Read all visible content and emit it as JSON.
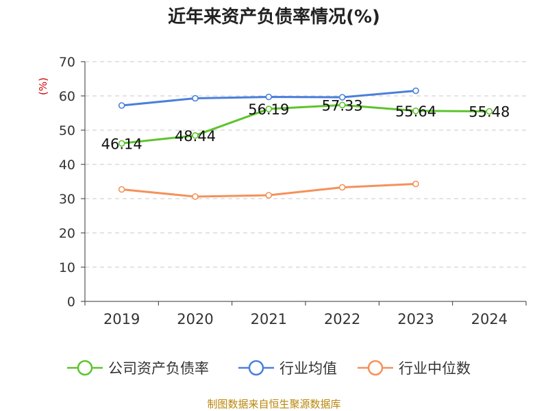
{
  "chart_data": {
    "type": "line",
    "title": "近年来资产负债率情况(%)",
    "ylabel": "(%)",
    "xlabel": "",
    "ylim": [
      0,
      70
    ],
    "yticks": [
      "0",
      "10",
      "20",
      "30",
      "40",
      "50",
      "60",
      "70"
    ],
    "categories": [
      "2019",
      "2020",
      "2021",
      "2022",
      "2023",
      "2024"
    ],
    "grid": "horizontal-dashed",
    "legend_position": "bottom",
    "series": [
      {
        "name": "公司资产负债率",
        "color": "#5cc42c",
        "values": [
          46.14,
          48.44,
          56.19,
          57.33,
          55.64,
          55.48
        ],
        "labels": [
          "46.14",
          "48.44",
          "56.19",
          "57.33",
          "55.64",
          "55.48"
        ],
        "show_labels": true
      },
      {
        "name": "行业均值",
        "color": "#4a7fdb",
        "values": [
          57.2,
          59.3,
          59.7,
          59.6,
          61.5,
          null
        ],
        "show_labels": false
      },
      {
        "name": "行业中位数",
        "color": "#f5915a",
        "values": [
          32.7,
          30.6,
          31.0,
          33.3,
          34.3,
          null
        ],
        "show_labels": false
      }
    ],
    "source": "制图数据来自恒生聚源数据库"
  }
}
